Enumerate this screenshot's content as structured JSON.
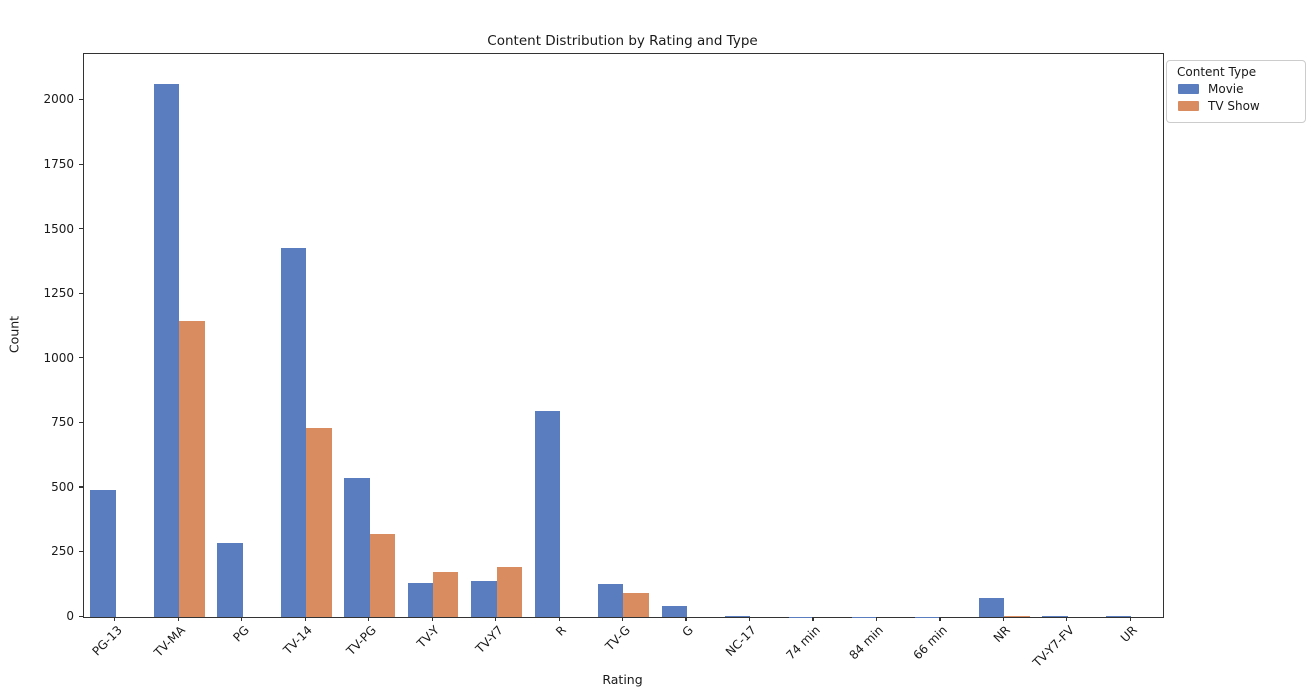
{
  "chart_data": {
    "type": "bar",
    "title": "Content Distribution by Rating and Type",
    "xlabel": "Rating",
    "ylabel": "Count",
    "legend_title": "Content Type",
    "legend_position": "upper right, outside plot",
    "grid": false,
    "categories": [
      "PG-13",
      "TV-MA",
      "PG",
      "TV-14",
      "TV-PG",
      "TV-Y",
      "TV-Y7",
      "R",
      "TV-G",
      "G",
      "NC-17",
      "74 min",
      "84 min",
      "66 min",
      "NR",
      "TV-Y7-FV",
      "UR"
    ],
    "series": [
      {
        "name": "Movie",
        "color": "#5a7dbf",
        "values": [
          490,
          2062,
          287,
          1427,
          540,
          131,
          139,
          797,
          126,
          41,
          3,
          1,
          1,
          1,
          75,
          5,
          3
        ]
      },
      {
        "name": "TV Show",
        "color": "#d98c60",
        "values": [
          0,
          1145,
          0,
          733,
          323,
          176,
          195,
          0,
          94,
          0,
          0,
          0,
          0,
          0,
          5,
          0,
          0
        ]
      }
    ],
    "ylim": [
      0,
      2180
    ],
    "yticks": [
      0,
      250,
      500,
      750,
      1000,
      1250,
      1500,
      1750,
      2000
    ]
  }
}
